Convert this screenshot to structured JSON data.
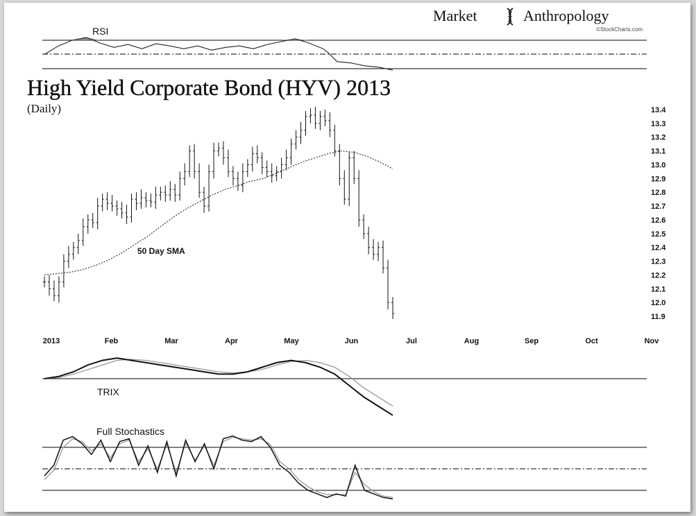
{
  "brand": {
    "name_left": "Market",
    "name_right": "Anthropology",
    "credit": "©StockCharts.com"
  },
  "chart_data": [
    {
      "type": "line",
      "title": "RSI",
      "levels": [
        70,
        50,
        30
      ],
      "ylim": [
        20,
        80
      ],
      "x": [
        0,
        5,
        10,
        15,
        20,
        25,
        30,
        35,
        40,
        45,
        50,
        55,
        60,
        65,
        70,
        75,
        80,
        85,
        90,
        95,
        100,
        102,
        105,
        110,
        115,
        120,
        125
      ],
      "values": [
        50,
        62,
        70,
        74,
        66,
        60,
        64,
        58,
        65,
        62,
        58,
        62,
        56,
        60,
        62,
        58,
        64,
        68,
        72,
        66,
        58,
        52,
        40,
        38,
        34,
        32,
        28
      ]
    },
    {
      "type": "bar",
      "title": "High Yield Corporate Bond (HYV) 2013",
      "subtitle": "(Daily)",
      "annotation": "50 Day SMA",
      "ylim": [
        11.85,
        13.42
      ],
      "yticks": [
        "13.4",
        "13.3",
        "13.2",
        "13.1",
        "13.0",
        "12.9",
        "12.8",
        "12.7",
        "12.6",
        "12.5",
        "12.4",
        "12.3",
        "12.2",
        "12.1",
        "12.0",
        "11.9"
      ],
      "xticks": [
        "2013",
        "Feb",
        "Mar",
        "Apr",
        "May",
        "Jun",
        "Jul",
        "Aug",
        "Sep",
        "Oct",
        "Nov"
      ],
      "close": [
        12.15,
        12.1,
        12.05,
        12.15,
        12.3,
        12.35,
        12.4,
        12.45,
        12.55,
        12.6,
        12.58,
        12.7,
        12.75,
        12.72,
        12.7,
        12.68,
        12.65,
        12.62,
        12.75,
        12.72,
        12.76,
        12.74,
        12.73,
        12.78,
        12.8,
        12.78,
        12.82,
        12.78,
        12.9,
        12.95,
        13.1,
        12.95,
        12.8,
        12.7,
        12.95,
        13.1,
        13.12,
        13.05,
        12.95,
        12.9,
        12.85,
        12.95,
        13.0,
        13.08,
        13.05,
        12.98,
        12.95,
        12.92,
        12.95,
        13.0,
        13.05,
        13.15,
        13.2,
        13.25,
        13.35,
        13.36,
        13.3,
        13.35,
        13.32,
        13.25,
        13.1,
        12.9,
        12.75,
        13.05,
        12.9,
        12.6,
        12.5,
        12.4,
        12.35,
        12.4,
        12.25,
        12.0,
        11.92
      ],
      "sma_label": "50 Day SMA",
      "sma": [
        12.2,
        12.21,
        12.22,
        12.24,
        12.27,
        12.31,
        12.36,
        12.42,
        12.48,
        12.55,
        12.62,
        12.68,
        12.73,
        12.78,
        12.82,
        12.85,
        12.88,
        12.9,
        12.94,
        12.98,
        13.02,
        13.05,
        13.08,
        13.1,
        13.09,
        13.06,
        13.02,
        12.97
      ]
    },
    {
      "type": "line",
      "title": "TRIX",
      "series": [
        {
          "values": [
            0,
            1,
            3,
            6,
            8,
            9,
            8,
            7,
            6,
            5,
            4,
            3,
            2,
            2,
            3,
            5,
            7,
            8,
            7,
            5,
            2,
            -3,
            -8,
            -12,
            -16
          ]
        },
        {
          "values": [
            0,
            0.5,
            2,
            4,
            6,
            8,
            8.5,
            8,
            7,
            6,
            5,
            4,
            3,
            2.5,
            3,
            4,
            6,
            7.5,
            8,
            7,
            5,
            1,
            -4,
            -8,
            -12
          ]
        }
      ]
    },
    {
      "type": "line",
      "title": "Full Stochastics",
      "levels": [
        80,
        50,
        20
      ],
      "series": [
        {
          "values": [
            40,
            55,
            90,
            95,
            85,
            70,
            90,
            60,
            88,
            92,
            55,
            82,
            45,
            88,
            40,
            90,
            60,
            85,
            50,
            92,
            96,
            90,
            88,
            95,
            80,
            55,
            45,
            30,
            20,
            15,
            10,
            15,
            12,
            55,
            20,
            15,
            10,
            8
          ]
        },
        {
          "values": [
            35,
            48,
            80,
            92,
            88,
            75,
            85,
            65,
            85,
            90,
            60,
            78,
            50,
            84,
            45,
            86,
            62,
            82,
            55,
            88,
            94,
            92,
            90,
            92,
            84,
            60,
            50,
            35,
            25,
            18,
            14,
            14,
            14,
            45,
            28,
            18,
            12,
            10
          ]
        }
      ]
    }
  ]
}
